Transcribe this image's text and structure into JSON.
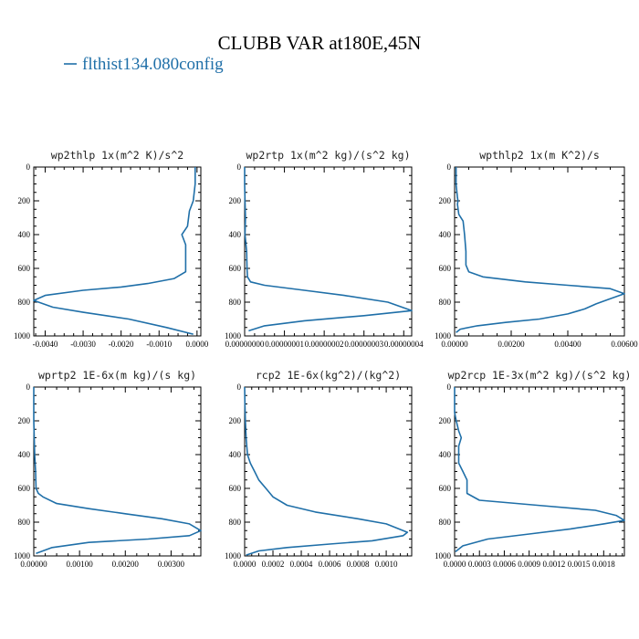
{
  "title": "CLUBB VAR at180E,45N",
  "colors": {
    "series": "#1f6fa8",
    "axes": "#000000"
  },
  "legend": {
    "label": "flthist134.080config",
    "marker": "line"
  },
  "chart_data": [
    {
      "type": "line",
      "title": "wp2thlp  1x(m^2 K)/s^2",
      "xlim": [
        -0.0043,
        0.0001
      ],
      "ylim": [
        1000,
        0
      ],
      "xticks": [
        -0.004,
        -0.003,
        -0.002,
        -0.001,
        0.0
      ],
      "xtick_labels": [
        "-0.0040",
        "-0.0030",
        "-0.0020",
        "-0.0010",
        "0.0000"
      ],
      "yticks": [
        0,
        200,
        400,
        600,
        800,
        1000
      ],
      "ytick_labels": [
        "0",
        "200",
        "400",
        "600",
        "800",
        "1000"
      ],
      "series": [
        {
          "x": [
            -5e-05,
            -5e-05,
            -0.0001,
            -0.0002,
            -0.00025,
            -0.0004,
            -0.0003,
            -0.0003,
            -0.0003,
            -0.0006,
            -0.0013,
            -0.002,
            -0.003,
            -0.004,
            -0.0043,
            -0.0038,
            -0.003,
            -0.0018,
            -0.0008,
            -0.0001
          ],
          "y": [
            0,
            100,
            200,
            260,
            350,
            400,
            460,
            550,
            620,
            660,
            690,
            710,
            730,
            760,
            790,
            830,
            860,
            900,
            950,
            990
          ]
        }
      ]
    },
    {
      "type": "line",
      "title": "wp2rtp  1x(m^2 kg)/(s^2 kg)",
      "xlim": [
        0,
        4.2e-08
      ],
      "ylim": [
        1000,
        0
      ],
      "xticks": [
        0,
        1e-08,
        2e-08,
        3e-08,
        4e-08
      ],
      "xtick_labels": [
        "0.00000000",
        "0.00000001",
        "0.00000002",
        "0.00000003",
        "0.00000004"
      ],
      "yticks": [
        0,
        200,
        400,
        600,
        800,
        1000
      ],
      "ytick_labels": [
        "0",
        "200",
        "400",
        "600",
        "800",
        "1000"
      ],
      "series": [
        {
          "x": [
            0,
            0,
            1e-10,
            2e-10,
            1e-10,
            5e-10,
            6e-10,
            7e-10,
            1.5e-09,
            5e-09,
            1.5e-08,
            2.5e-08,
            3.6e-08,
            4.2e-08,
            3e-08,
            1.5e-08,
            5e-09,
            1e-09
          ],
          "y": [
            0,
            100,
            200,
            300,
            400,
            500,
            600,
            650,
            680,
            700,
            730,
            760,
            800,
            850,
            880,
            910,
            940,
            970
          ]
        }
      ]
    },
    {
      "type": "line",
      "title": "wpthlp2  1x(m K^2)/s",
      "xlim": [
        0,
        0.006
      ],
      "ylim": [
        1000,
        0
      ],
      "xticks": [
        0,
        0.002,
        0.004,
        0.006
      ],
      "xtick_labels": [
        "0.00000",
        "0.00200",
        "0.00400",
        "0.00600"
      ],
      "yticks": [
        0,
        200,
        400,
        600,
        800,
        1000
      ],
      "ytick_labels": [
        "0",
        "200",
        "400",
        "600",
        "800",
        "1000"
      ],
      "series": [
        {
          "x": [
            5e-05,
            5e-05,
            0.0001,
            0.00012,
            0.0001,
            0.00015,
            0.0003,
            0.00035,
            0.0004,
            0.0004,
            0.0005,
            0.001,
            0.0025,
            0.004,
            0.0055,
            0.006,
            0.0055,
            0.005,
            0.0046,
            0.004,
            0.003,
            0.0018,
            0.0008,
            0.0002,
            5e-05
          ],
          "y": [
            0,
            100,
            180,
            200,
            220,
            280,
            320,
            400,
            500,
            580,
            620,
            650,
            680,
            700,
            720,
            750,
            780,
            810,
            840,
            870,
            900,
            920,
            940,
            960,
            980
          ]
        }
      ]
    },
    {
      "type": "line",
      "title": "wprtp2  1E-6x(m kg)/(s kg)",
      "xlim": [
        0,
        0.00365
      ],
      "ylim": [
        1000,
        0
      ],
      "xticks": [
        0,
        0.001,
        0.002,
        0.003
      ],
      "xtick_labels": [
        "0.00000",
        "0.00100",
        "0.00200",
        "0.00300"
      ],
      "yticks": [
        0,
        200,
        400,
        600,
        800,
        1000
      ],
      "ytick_labels": [
        "0",
        "200",
        "400",
        "600",
        "800",
        "1000"
      ],
      "series": [
        {
          "x": [
            0,
            0,
            2e-05,
            4e-05,
            5e-05,
            0.0001,
            0.0002,
            0.0005,
            0.0012,
            0.002,
            0.0028,
            0.0034,
            0.00365,
            0.0034,
            0.0025,
            0.0012,
            0.0004,
            5e-05
          ],
          "y": [
            0,
            200,
            400,
            500,
            600,
            630,
            650,
            690,
            720,
            750,
            780,
            810,
            850,
            880,
            900,
            920,
            950,
            985
          ]
        }
      ]
    },
    {
      "type": "line",
      "title": "rcp2  1E-6x(kg^2)/(kg^2)",
      "xlim": [
        0,
        0.00118
      ],
      "ylim": [
        1000,
        0
      ],
      "xticks": [
        0,
        0.0002,
        0.0004,
        0.0006,
        0.0008,
        0.001
      ],
      "xtick_labels": [
        "0.0000",
        "0.0002",
        "0.0004",
        "0.0006",
        "0.0008",
        "0.0010"
      ],
      "yticks": [
        0,
        200,
        400,
        600,
        800,
        1000
      ],
      "ytick_labels": [
        "0",
        "200",
        "400",
        "600",
        "800",
        "1000"
      ],
      "series": [
        {
          "x": [
            0,
            2e-06,
            5e-06,
            1e-05,
            2e-05,
            4e-05,
            7e-05,
            0.0001,
            0.00015,
            0.0002,
            0.0003,
            0.0005,
            0.0008,
            0.001,
            0.00115,
            0.00112,
            0.0009,
            0.0006,
            0.0003,
            0.0001,
            1e-05
          ],
          "y": [
            0,
            100,
            200,
            300,
            400,
            450,
            500,
            550,
            600,
            650,
            700,
            740,
            780,
            810,
            860,
            880,
            910,
            930,
            950,
            970,
            995
          ]
        }
      ]
    },
    {
      "type": "line",
      "title": "wp2rcp  1E-3x(m^2 kg)/(s^2 kg)",
      "xlim": [
        0,
        0.00205
      ],
      "ylim": [
        1000,
        0
      ],
      "xticks": [
        0,
        0.0003,
        0.0006,
        0.0009,
        0.0012,
        0.0015,
        0.0018
      ],
      "xtick_labels": [
        "0.0000",
        "0.0003",
        "0.0006",
        "0.0009",
        "0.0012",
        "0.0015",
        "0.0018"
      ],
      "yticks": [
        0,
        200,
        400,
        600,
        800,
        1000
      ],
      "ytick_labels": [
        "0",
        "200",
        "400",
        "600",
        "800",
        "1000"
      ],
      "series": [
        {
          "x": [
            0,
            0,
            2e-05,
            5e-05,
            8e-05,
            5e-05,
            5e-05,
            0.0001,
            0.00015,
            0.00015,
            0.0003,
            0.001,
            0.0017,
            0.00195,
            0.00205,
            0.0018,
            0.0014,
            0.0009,
            0.0004,
            0.0001,
            1e-05
          ],
          "y": [
            0,
            150,
            200,
            260,
            300,
            350,
            450,
            500,
            550,
            630,
            670,
            700,
            730,
            760,
            790,
            810,
            840,
            870,
            900,
            940,
            975
          ]
        }
      ]
    }
  ]
}
